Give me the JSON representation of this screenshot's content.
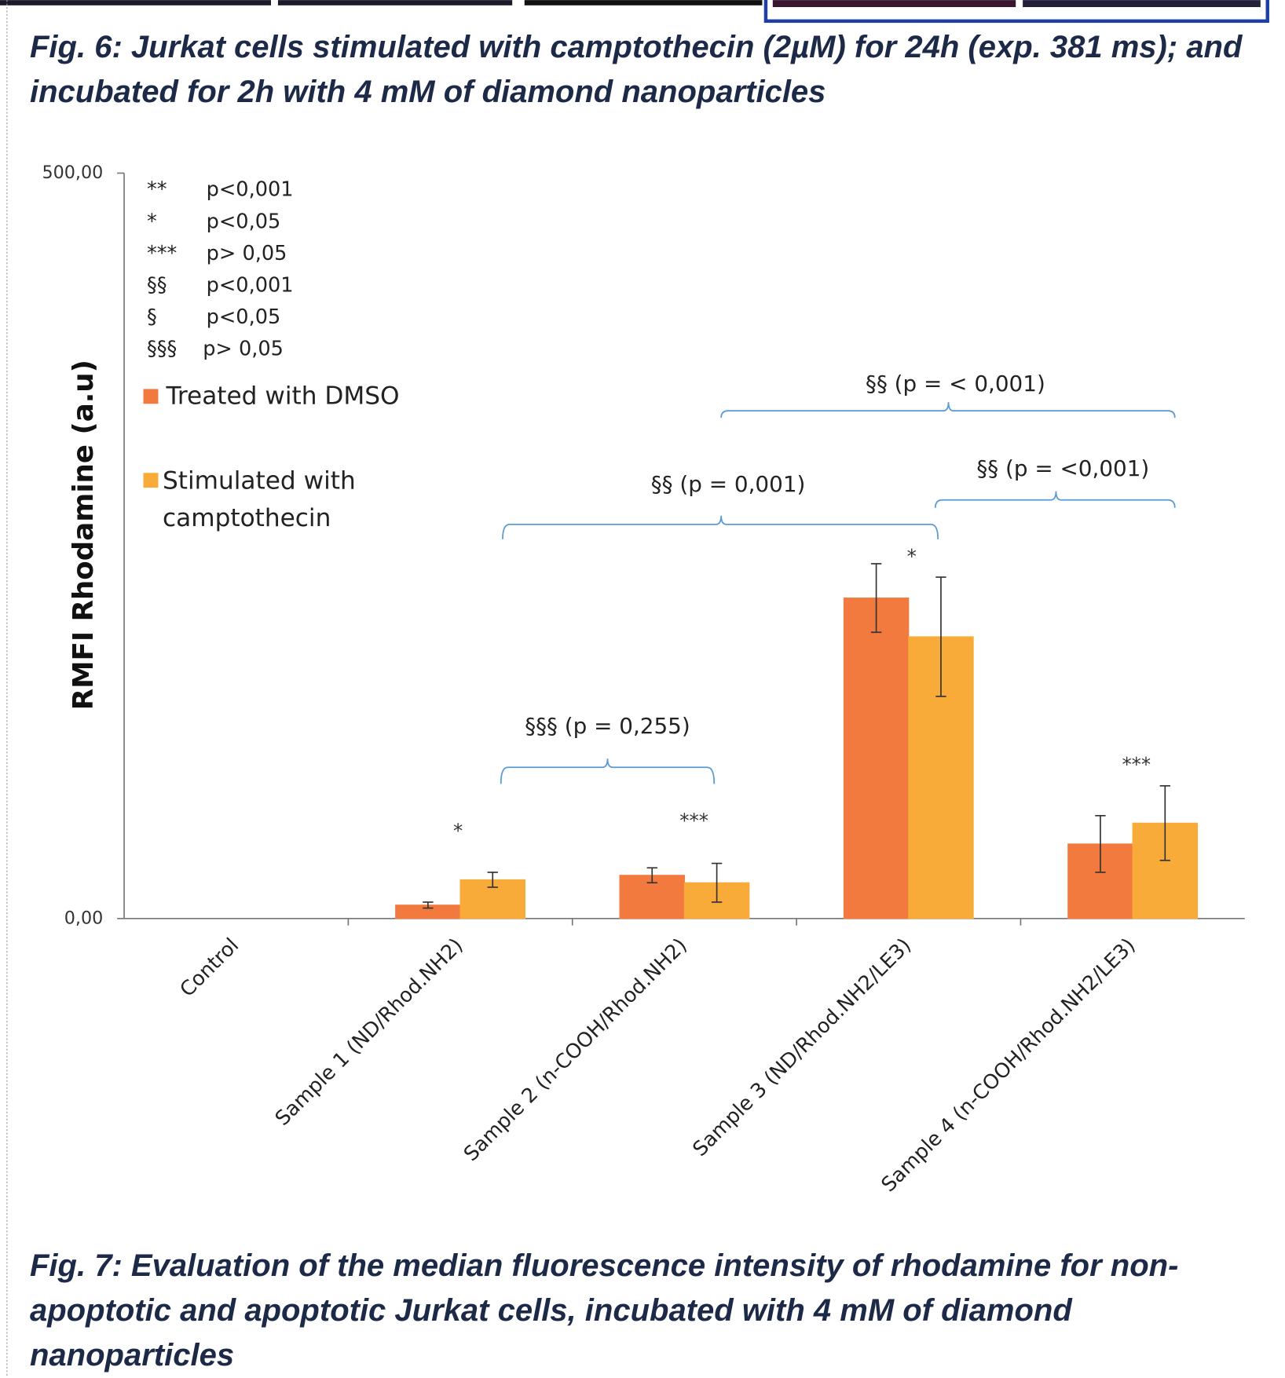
{
  "figure_6_caption": "Fig. 6: Jurkat cells stimulated with camptothecin (2µM) for 24h (exp. 381 ms); and incubated for 2h with 4 mM of diamond nanoparticles",
  "chart_data": {
    "type": "bar",
    "y_label": "RMFI Rhodamine (a.u)",
    "categories": [
      "Control",
      "Sample 1 (ND/Rhod.NH2)",
      "Sample 2 (n-COOH/Rhod.NH2)",
      "Sample 3 (ND/Rhod.NH2/LE3)",
      "Sample 4 (n-COOH/Rhod.NH2/LE3)"
    ],
    "series": [
      {
        "name": "Treated with DMSO",
        "color": "#f37a3e",
        "values": [
          0,
          9,
          29,
          215,
          50
        ],
        "errors": [
          null,
          2,
          5,
          23,
          19
        ]
      },
      {
        "name": "Stimulated with camptothecin",
        "color": "#f9ab3a",
        "values": [
          0,
          26,
          24,
          189,
          64
        ],
        "errors": [
          null,
          5,
          13,
          40,
          25
        ]
      }
    ],
    "ylim": [
      0,
      500
    ],
    "yticks": [
      {
        "value": 0,
        "label": "0,00"
      },
      {
        "value": 500,
        "label": "500,00"
      }
    ],
    "key": [
      [
        "**",
        "p<0,001"
      ],
      [
        "*",
        "p<0,05"
      ],
      [
        "***",
        "p> 0,05"
      ],
      [
        "§§",
        "p<0,001"
      ],
      [
        "§",
        "p<0,05"
      ],
      [
        "§§§",
        "p> 0,05"
      ]
    ],
    "annotations": [
      "*",
      "***",
      "*",
      "***"
    ],
    "brackets": [
      "§§§ (p = 0,255)",
      "§§ (p = 0,001)",
      "§§ (p = <0,001)",
      "§§ (p = < 0,001)"
    ]
  },
  "figure_7_caption": "Fig. 7: Evaluation of the median fluorescence intensity of rhodamine for non-apoptotic and apoptotic Jurkat cells, incubated with 4 mM of diamond nanoparticles"
}
